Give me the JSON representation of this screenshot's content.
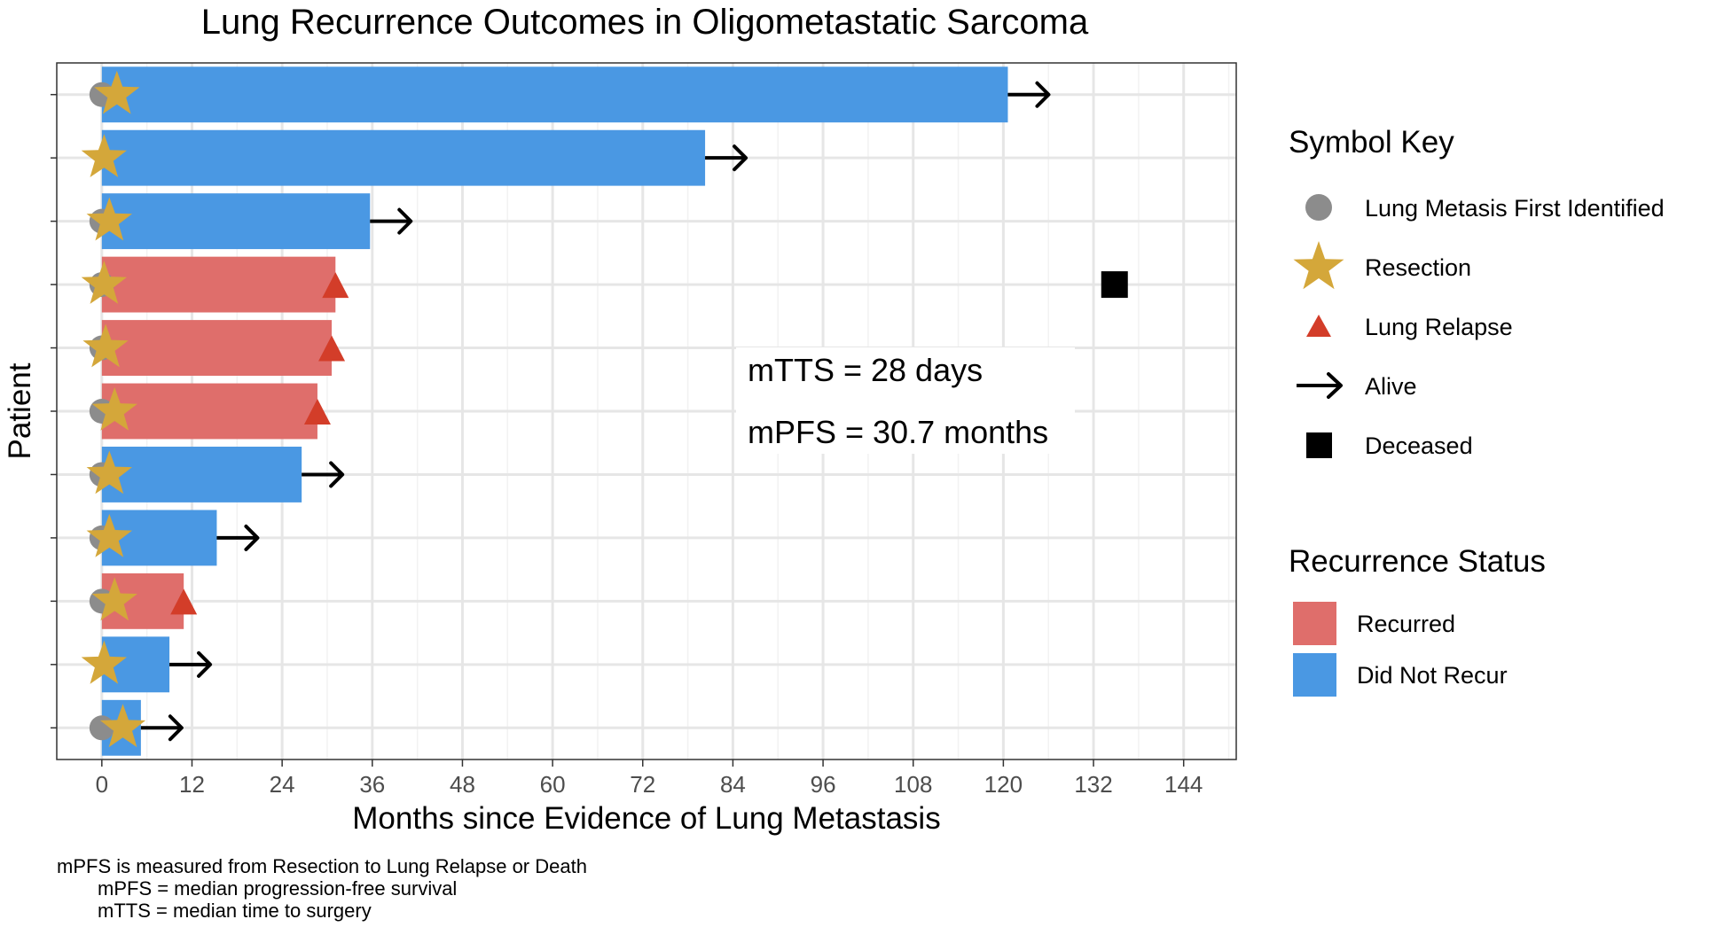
{
  "chart_data": {
    "type": "bar",
    "title": "Lung Recurrence Outcomes in Oligometastatic Sarcoma",
    "xlabel": "Months since Evidence of Lung Metastasis",
    "ylabel": "Patient",
    "xlim": [
      -6,
      151
    ],
    "x_ticks": [
      0,
      12,
      24,
      36,
      48,
      60,
      72,
      84,
      96,
      108,
      120,
      132,
      144
    ],
    "grid": true,
    "legend_position": "right",
    "patients": [
      {
        "months": 120.6,
        "status": "Did Not Recur",
        "first_identified": 0,
        "resection": 2,
        "relapse": null,
        "outcome": "Alive"
      },
      {
        "months": 80.3,
        "status": "Did Not Recur",
        "first_identified": null,
        "resection": 0.3,
        "relapse": null,
        "outcome": "Alive"
      },
      {
        "months": 35.7,
        "status": "Did Not Recur",
        "first_identified": 0,
        "resection": 1,
        "relapse": null,
        "outcome": "Alive"
      },
      {
        "months": 31.1,
        "status": "Recurred",
        "first_identified": 0,
        "resection": 0.3,
        "relapse": 31.1,
        "outcome": "Deceased",
        "death_at": 134.8
      },
      {
        "months": 30.6,
        "status": "Recurred",
        "first_identified": 0,
        "resection": 0.5,
        "relapse": 30.6,
        "outcome": null
      },
      {
        "months": 28.7,
        "status": "Recurred",
        "first_identified": 0,
        "resection": 1.7,
        "relapse": 28.7,
        "outcome": null
      },
      {
        "months": 26.6,
        "status": "Did Not Recur",
        "first_identified": 0,
        "resection": 1,
        "relapse": null,
        "outcome": "Alive"
      },
      {
        "months": 15.3,
        "status": "Did Not Recur",
        "first_identified": 0,
        "resection": 1,
        "relapse": null,
        "outcome": "Alive"
      },
      {
        "months": 10.9,
        "status": "Recurred",
        "first_identified": 0,
        "resection": 1.7,
        "relapse": 10.9,
        "outcome": null
      },
      {
        "months": 9.0,
        "status": "Did Not Recur",
        "first_identified": null,
        "resection": 0.3,
        "relapse": null,
        "outcome": "Alive"
      },
      {
        "months": 5.2,
        "status": "Did Not Recur",
        "first_identified": 0,
        "resection": 2.8,
        "relapse": null,
        "outcome": "Alive"
      }
    ],
    "annotations": [
      "mTTS = 28 days",
      "mPFS = 30.7 months"
    ]
  },
  "legend": {
    "symbol_key_title": "Symbol Key",
    "symbols": [
      {
        "name": "Lung Metasis First Identified",
        "icon": "circle",
        "color": "#8c8c8c"
      },
      {
        "name": "Resection",
        "icon": "star",
        "color": "#d4a73a"
      },
      {
        "name": "Lung Relapse",
        "icon": "triangle",
        "color": "#d33d29"
      },
      {
        "name": "Alive",
        "icon": "arrow-right",
        "color": "#000000"
      },
      {
        "name": "Deceased",
        "icon": "square",
        "color": "#000000"
      }
    ],
    "status_title": "Recurrence Status",
    "status": [
      {
        "name": "Recurred",
        "color": "#df6e6b"
      },
      {
        "name": "Did Not Recur",
        "color": "#4a98e3"
      }
    ]
  },
  "caption": {
    "line1": "mPFS is measured from Resection to Lung Relapse or Death",
    "line2": "mPFS = median progression-free survival",
    "line3": "mTTS = median time to surgery"
  }
}
